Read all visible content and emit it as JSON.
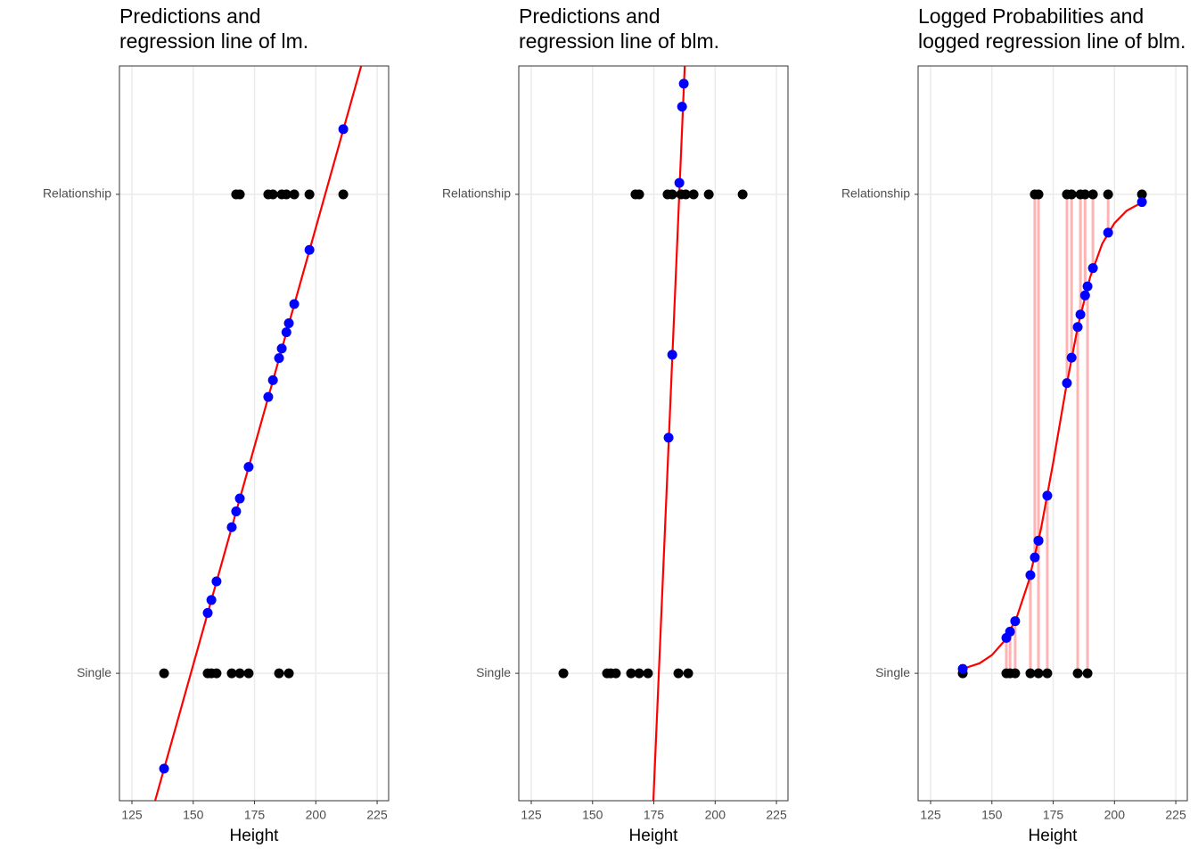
{
  "chart_data": [
    {
      "type": "scatter",
      "title": [
        "Predictions and",
        "regression line of lm."
      ],
      "x_label": "Height",
      "xlim": [
        119.9,
        229.7
      ],
      "ylim": [
        -0.266,
        1.268
      ],
      "xticks": [
        125,
        150,
        175,
        200,
        225
      ],
      "yticks": [
        {
          "value": 0,
          "label": "Single"
        },
        {
          "value": 1,
          "label": "Relationship"
        }
      ],
      "grid": true,
      "series": [
        {
          "type": "scatter",
          "color": "#000000",
          "x": [
            138.1,
            155.9,
            157.4,
            159.5,
            165.7,
            169,
            172.6,
            185,
            189,
            167.5,
            169,
            180.6,
            182.5,
            186.1,
            188,
            191.2,
            197.4,
            211.2
          ],
          "values": [
            0,
            0,
            0,
            0,
            0,
            0,
            0,
            0,
            0,
            1,
            1,
            1,
            1,
            1,
            1,
            1,
            1,
            1
          ]
        },
        {
          "type": "scatter",
          "color": "#0000ff",
          "x": [
            138.1,
            155.9,
            157.4,
            159.5,
            165.7,
            169,
            172.6,
            185,
            189,
            167.5,
            180.6,
            182.5,
            186.1,
            188,
            191.2,
            197.4,
            211.2
          ],
          "values": [
            -0.199,
            0.126,
            0.153,
            0.192,
            0.305,
            0.365,
            0.431,
            0.658,
            0.731,
            0.338,
            0.577,
            0.612,
            0.678,
            0.712,
            0.771,
            0.884,
            1.136
          ]
        },
        {
          "type": "line",
          "color": "#ff0000",
          "x": [
            134.45,
            218.5
          ],
          "values": [
            -0.266,
            1.268
          ]
        }
      ]
    },
    {
      "type": "scatter",
      "title": [
        "Predictions and",
        "regression line of blm."
      ],
      "x_label": "Height",
      "xlim": [
        119.9,
        229.7
      ],
      "ylim": [
        -0.266,
        1.268
      ],
      "xticks": [
        125,
        150,
        175,
        200,
        225
      ],
      "yticks": [
        {
          "value": 0,
          "label": "Single"
        },
        {
          "value": 1,
          "label": "Relationship"
        }
      ],
      "grid": true,
      "series": [
        {
          "type": "scatter",
          "color": "#000000",
          "x": [
            138.1,
            155.9,
            157.4,
            159.5,
            165.7,
            169,
            172.6,
            185,
            189,
            167.5,
            169,
            180.6,
            182.5,
            186.1,
            188,
            191.2,
            197.4,
            211.2
          ],
          "values": [
            0,
            0,
            0,
            0,
            0,
            0,
            0,
            0,
            0,
            1,
            1,
            1,
            1,
            1,
            1,
            1,
            1,
            1
          ]
        },
        {
          "type": "scatter",
          "color": "#0000ff",
          "x": [
            181,
            182.5,
            185.4,
            186.5,
            187.2
          ],
          "values": [
            0.492,
            0.665,
            1.024,
            1.183,
            1.231
          ]
        },
        {
          "type": "line",
          "color": "#ff0000",
          "x": [
            174.8,
            187.6
          ],
          "values": [
            -0.266,
            1.268
          ]
        }
      ]
    },
    {
      "type": "scatter",
      "title": [
        "Logged Probabilities and",
        "logged regression line of blm."
      ],
      "x_label": "Height",
      "xlim": [
        119.9,
        229.7
      ],
      "ylim": [
        -0.266,
        1.268
      ],
      "xticks": [
        125,
        150,
        175,
        200,
        225
      ],
      "yticks": [
        {
          "value": 0,
          "label": "Single"
        },
        {
          "value": 1,
          "label": "Relationship"
        }
      ],
      "grid": true,
      "residuals": true,
      "residual_color": "#ffb3b3",
      "series": [
        {
          "type": "scatter",
          "color": "#000000",
          "x": [
            138.1,
            155.9,
            157.4,
            159.5,
            165.7,
            169,
            172.6,
            185,
            189,
            167.5,
            169,
            180.6,
            182.5,
            186.1,
            188,
            191.2,
            197.4,
            211.2
          ],
          "values": [
            0,
            0,
            0,
            0,
            0,
            0,
            0,
            0,
            0,
            1,
            1,
            1,
            1,
            1,
            1,
            1,
            1,
            1
          ]
        },
        {
          "type": "scatter",
          "color": "#0000ff",
          "x": [
            138.1,
            155.9,
            157.4,
            159.5,
            165.7,
            169,
            172.6,
            185,
            189,
            167.5,
            169,
            180.6,
            182.5,
            186.1,
            188,
            191.2,
            197.4,
            211.2
          ],
          "values": [
            0.0093,
            0.074,
            0.087,
            0.109,
            0.205,
            0.277,
            0.371,
            0.723,
            0.808,
            0.242,
            0.277,
            0.606,
            0.659,
            0.749,
            0.789,
            0.846,
            0.92,
            0.984
          ]
        },
        {
          "type": "line",
          "color": "#ff0000",
          "x": [
            138.1,
            145,
            150,
            155,
            160,
            165,
            170,
            175,
            180,
            185,
            190,
            195,
            200,
            205,
            211.5
          ],
          "values": [
            0.0093,
            0.021,
            0.038,
            0.067,
            0.115,
            0.192,
            0.301,
            0.44,
            0.589,
            0.723,
            0.826,
            0.897,
            0.94,
            0.966,
            0.984
          ]
        }
      ]
    }
  ]
}
